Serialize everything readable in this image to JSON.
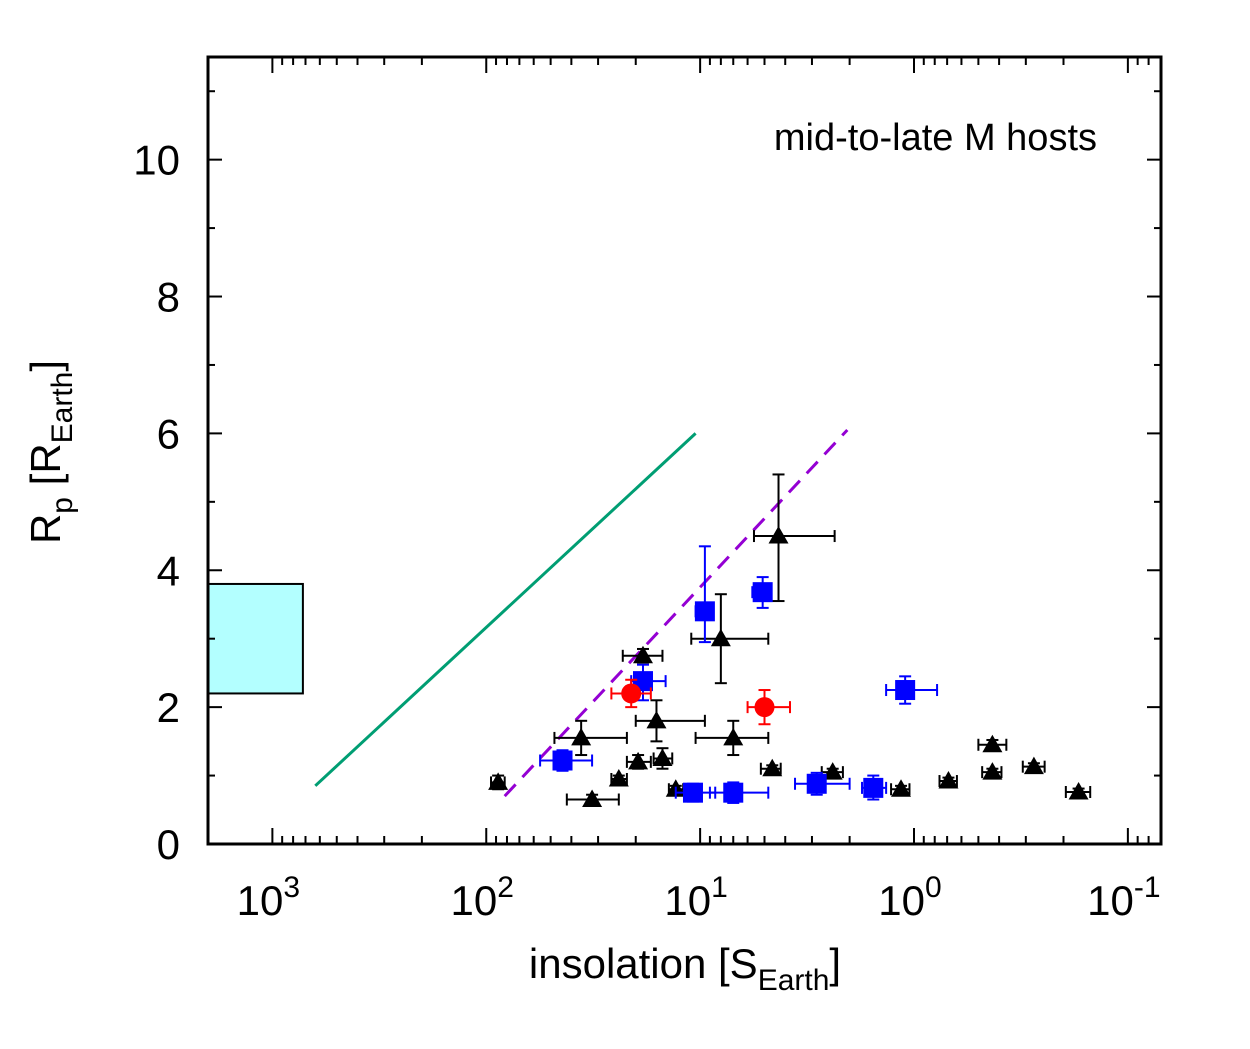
{
  "chart_data": {
    "type": "scatter",
    "title": "",
    "annotation": "mid-to-late M hosts",
    "x_scale": "log",
    "x_reversed": true,
    "xlim": [
      2000,
      0.07
    ],
    "ylim": [
      0,
      11.5
    ],
    "xlabel": {
      "main": "insolation [S",
      "sub": "Earth",
      "close": "]"
    },
    "ylabel": {
      "main": "R",
      "sub_p": "p",
      "mid": " [R",
      "sub": "Earth",
      "close": "]"
    },
    "x_ticks": [
      {
        "value": 1000,
        "base": "10",
        "exp": "3"
      },
      {
        "value": 100,
        "base": "10",
        "exp": "2"
      },
      {
        "value": 10,
        "base": "10",
        "exp": "1"
      },
      {
        "value": 1,
        "base": "10",
        "exp": "0"
      },
      {
        "value": 0.1,
        "base": "10",
        "exp": "-1"
      }
    ],
    "y_ticks": [
      {
        "value": 0,
        "label": "0"
      },
      {
        "value": 2,
        "label": "2"
      },
      {
        "value": 4,
        "label": "4"
      },
      {
        "value": 6,
        "label": "6"
      },
      {
        "value": 8,
        "label": "8"
      },
      {
        "value": 10,
        "label": "10"
      }
    ],
    "grid": false,
    "region": {
      "x": [
        2000,
        720
      ],
      "y": [
        2.2,
        3.8
      ],
      "color": "#b3ffff"
    },
    "lines": [
      {
        "style": "solid",
        "color": "#009e73",
        "x": [
          630,
          10.5
        ],
        "y": [
          0.85,
          6.0
        ]
      },
      {
        "style": "dashed",
        "color": "#9400d3",
        "x": [
          82,
          2.05
        ],
        "y": [
          0.7,
          6.05
        ]
      }
    ],
    "series": [
      {
        "marker": "triangle",
        "color": "#000000",
        "points": [
          {
            "x": 88,
            "y": 0.9,
            "xlo": 82,
            "xhi": 95,
            "ylo": 0.8,
            "yhi": 1.0
          },
          {
            "x": 32,
            "y": 0.65,
            "xlo": 42,
            "xhi": 24,
            "ylo": 0.58,
            "yhi": 0.72
          },
          {
            "x": 36,
            "y": 1.55,
            "xlo": 48,
            "xhi": 22,
            "ylo": 1.3,
            "yhi": 1.8
          },
          {
            "x": 24,
            "y": 0.95,
            "xlo": 26,
            "xhi": 22,
            "ylo": 0.9,
            "yhi": 1.0
          },
          {
            "x": 19.5,
            "y": 1.2,
            "xlo": 22,
            "xhi": 17,
            "ylo": 1.1,
            "yhi": 1.3
          },
          {
            "x": 18.5,
            "y": 2.75,
            "xlo": 23,
            "xhi": 15,
            "ylo": 2.65,
            "yhi": 2.85
          },
          {
            "x": 16,
            "y": 1.8,
            "xlo": 20,
            "xhi": 9.5,
            "ylo": 1.5,
            "yhi": 2.1
          },
          {
            "x": 15,
            "y": 1.25,
            "xlo": 16.5,
            "xhi": 13.5,
            "ylo": 1.1,
            "yhi": 1.4
          },
          {
            "x": 13,
            "y": 0.8,
            "xlo": 14,
            "xhi": 12,
            "ylo": 0.75,
            "yhi": 0.85
          },
          {
            "x": 8,
            "y": 3.0,
            "xlo": 11,
            "xhi": 4.8,
            "ylo": 2.35,
            "yhi": 3.65
          },
          {
            "x": 7,
            "y": 1.55,
            "xlo": 10.5,
            "xhi": 4.8,
            "ylo": 1.3,
            "yhi": 1.8
          },
          {
            "x": 4.6,
            "y": 1.1,
            "xlo": 5.2,
            "xhi": 4.2,
            "ylo": 1.05,
            "yhi": 1.15
          },
          {
            "x": 4.3,
            "y": 4.5,
            "xlo": 5.6,
            "xhi": 2.35,
            "ylo": 3.55,
            "yhi": 5.4
          },
          {
            "x": 2.4,
            "y": 1.05,
            "xlo": 2.7,
            "xhi": 2.15,
            "ylo": 1.0,
            "yhi": 1.1
          },
          {
            "x": 1.15,
            "y": 0.8,
            "xlo": 1.28,
            "xhi": 1.05,
            "ylo": 0.75,
            "yhi": 0.85
          },
          {
            "x": 0.69,
            "y": 0.92,
            "xlo": 0.76,
            "xhi": 0.63,
            "ylo": 0.87,
            "yhi": 0.97
          },
          {
            "x": 0.43,
            "y": 1.45,
            "xlo": 0.5,
            "xhi": 0.37,
            "ylo": 1.38,
            "yhi": 1.52
          },
          {
            "x": 0.43,
            "y": 1.05,
            "xlo": 0.48,
            "xhi": 0.39,
            "ylo": 1.0,
            "yhi": 1.1
          },
          {
            "x": 0.275,
            "y": 1.13,
            "xlo": 0.31,
            "xhi": 0.245,
            "ylo": 1.08,
            "yhi": 1.18
          },
          {
            "x": 0.17,
            "y": 0.76,
            "xlo": 0.195,
            "xhi": 0.15,
            "ylo": 0.71,
            "yhi": 0.81
          }
        ]
      },
      {
        "marker": "square",
        "color": "#0000ff",
        "points": [
          {
            "x": 44,
            "y": 1.22,
            "xlo": 56,
            "xhi": 32,
            "ylo": 1.07,
            "yhi": 1.37
          },
          {
            "x": 18.5,
            "y": 2.38,
            "xlo": 21,
            "xhi": 14.5,
            "ylo": 2.1,
            "yhi": 2.62
          },
          {
            "x": 10.8,
            "y": 0.75,
            "xlo": 13,
            "xhi": 8.5,
            "ylo": 0.62,
            "yhi": 0.88
          },
          {
            "x": 9.5,
            "y": 3.4,
            "xlo": 10.5,
            "xhi": 8.8,
            "ylo": 2.95,
            "yhi": 4.35
          },
          {
            "x": 7,
            "y": 0.75,
            "xlo": 9,
            "xhi": 4.8,
            "ylo": 0.6,
            "yhi": 0.9
          },
          {
            "x": 5.1,
            "y": 3.68,
            "xlo": 5.7,
            "xhi": 4.7,
            "ylo": 3.45,
            "yhi": 3.9
          },
          {
            "x": 2.85,
            "y": 0.88,
            "xlo": 3.6,
            "xhi": 2.0,
            "ylo": 0.72,
            "yhi": 1.04
          },
          {
            "x": 1.55,
            "y": 0.82,
            "xlo": 1.75,
            "xhi": 1.35,
            "ylo": 0.65,
            "yhi": 1.0
          },
          {
            "x": 1.1,
            "y": 2.25,
            "xlo": 1.35,
            "xhi": 0.78,
            "ylo": 2.05,
            "yhi": 2.45
          }
        ]
      },
      {
        "marker": "circle",
        "color": "#ff0000",
        "points": [
          {
            "x": 21,
            "y": 2.2,
            "xlo": 26,
            "xhi": 17,
            "ylo": 2.0,
            "yhi": 2.4
          },
          {
            "x": 5.0,
            "y": 2.0,
            "xlo": 6.0,
            "xhi": 3.8,
            "ylo": 1.75,
            "yhi": 2.25
          }
        ]
      }
    ]
  }
}
